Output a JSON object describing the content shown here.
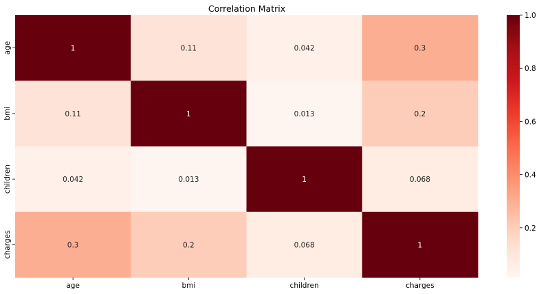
{
  "chart_data": {
    "type": "heatmap",
    "title": "Correlation Matrix",
    "x_categories": [
      "age",
      "bmi",
      "children",
      "charges"
    ],
    "y_categories": [
      "age",
      "bmi",
      "children",
      "charges"
    ],
    "values": [
      [
        1,
        0.11,
        0.042,
        0.3
      ],
      [
        0.11,
        1,
        0.013,
        0.2
      ],
      [
        0.042,
        0.013,
        1,
        0.068
      ],
      [
        0.3,
        0.2,
        0.068,
        1
      ]
    ],
    "value_labels": [
      [
        "1",
        "0.11",
        "0.042",
        "0.3"
      ],
      [
        "0.11",
        "1",
        "0.013",
        "0.2"
      ],
      [
        "0.042",
        "0.013",
        "1",
        "0.068"
      ],
      [
        "0.3",
        "0.2",
        "0.068",
        "1"
      ]
    ],
    "colorbar": {
      "min": 0.013,
      "max": 1,
      "ticks": [
        0.2,
        0.4,
        0.6,
        0.8,
        1.0
      ],
      "tick_labels": [
        "0.2",
        "0.4",
        "0.6",
        "0.8",
        "1.0"
      ]
    },
    "colormap": "Reds",
    "annotation_light_color": "#ffffff",
    "annotation_dark_color": "#262626"
  }
}
